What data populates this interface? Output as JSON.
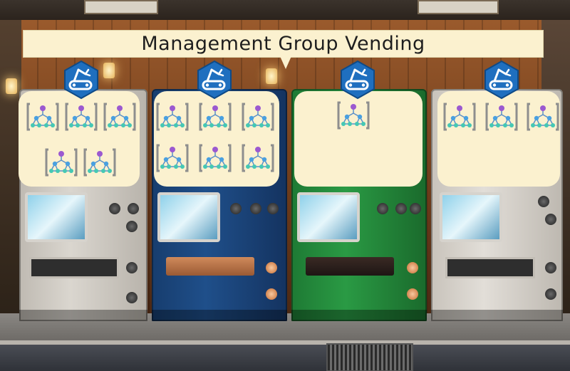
{
  "title": "Management Group Vending",
  "icons": {
    "badge": "pipeline-badge-icon",
    "group": "management-group-icon"
  },
  "colors": {
    "panel": "#fbf1cf",
    "badge": "#1f6fbf",
    "node_purple": "#9b59d0",
    "node_teal": "#45c8b4"
  },
  "machines": [
    {
      "name": "grey",
      "groups": 5
    },
    {
      "name": "blue",
      "groups": 6
    },
    {
      "name": "green",
      "groups": 1
    },
    {
      "name": "grey-right",
      "groups": 3
    }
  ]
}
